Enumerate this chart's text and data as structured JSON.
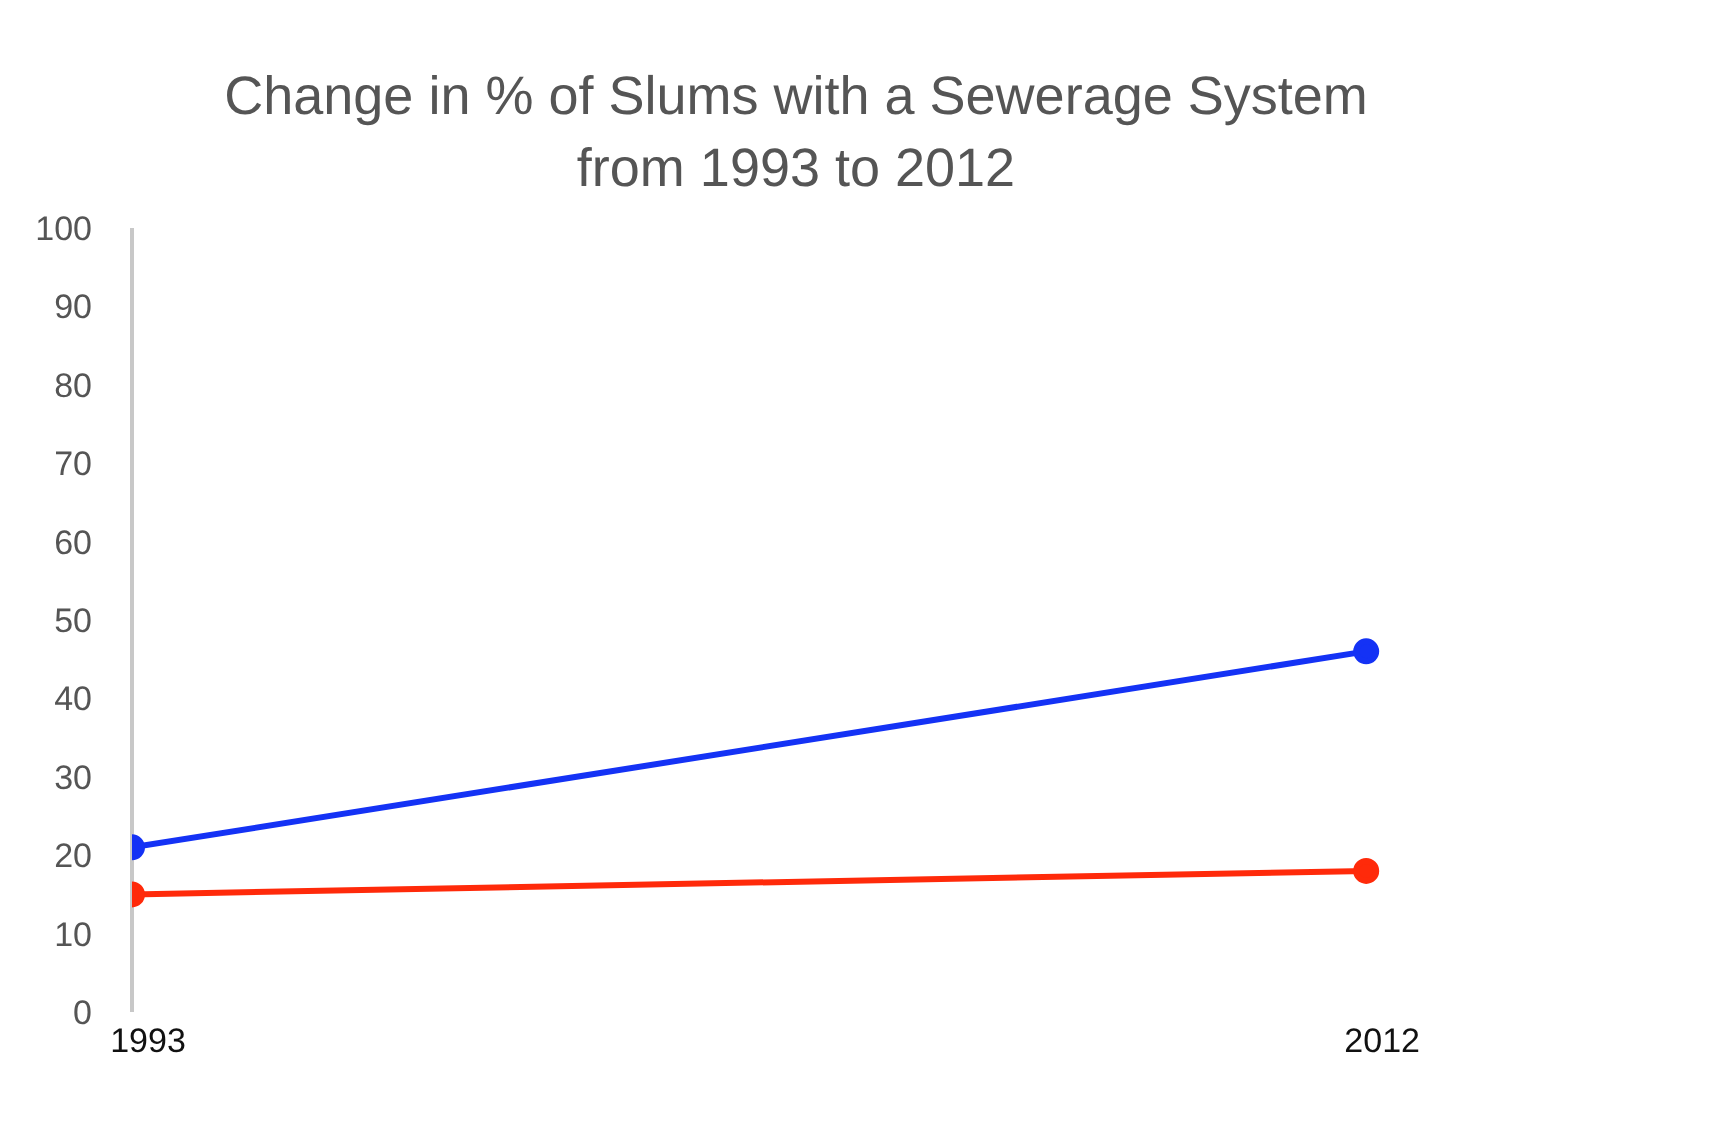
{
  "chart_data": {
    "type": "line",
    "title": "Change in % of Slums with a Sewerage System from 1993 to 2012",
    "categories": [
      "1993",
      "2012"
    ],
    "series": [
      {
        "color": "#1432f5",
        "values": [
          21,
          46
        ]
      },
      {
        "color": "#ff2a0a",
        "values": [
          15,
          18
        ]
      }
    ],
    "ylim": [
      0,
      100
    ],
    "yticks": [
      0,
      10,
      20,
      30,
      40,
      50,
      60,
      70,
      80,
      90,
      100
    ],
    "grid": false,
    "legend": false,
    "marker": "circle",
    "line_style": "solid"
  }
}
